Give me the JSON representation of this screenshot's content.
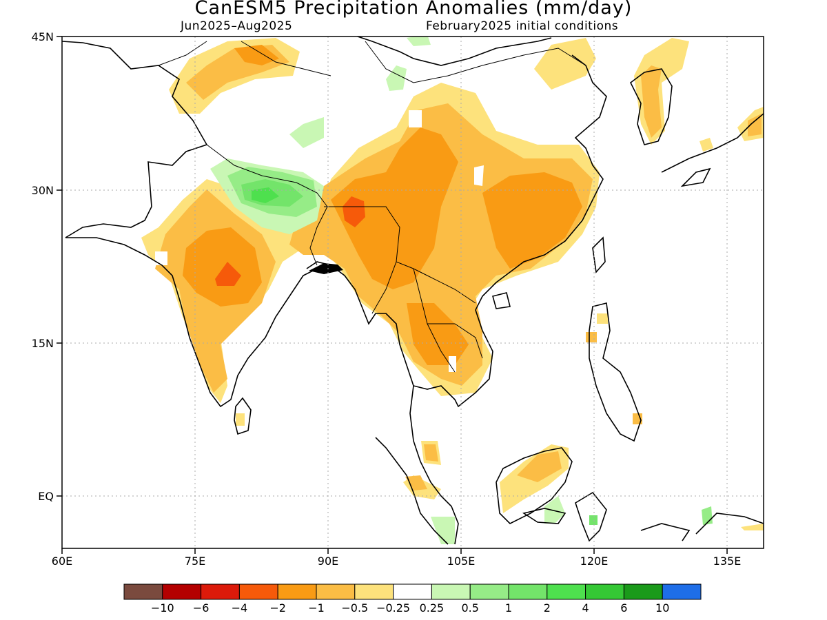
{
  "title": "CanESM5 Precipitation Anomalies (mm/day)",
  "subtitle_left": "Jun2025–Aug2025",
  "subtitle_right": "February2025 initial conditions",
  "axes": {
    "lon_ticks": [
      "60E",
      "75E",
      "90E",
      "105E",
      "120E",
      "135E"
    ],
    "lat_ticks": [
      "45N",
      "30N",
      "15N",
      "EQ"
    ]
  },
  "colorbar": {
    "colors": [
      "#7a4a3e",
      "#b40000",
      "#dc1a0a",
      "#f65a0a",
      "#f99b14",
      "#fbbd45",
      "#fde27c",
      "#ffffff",
      "#c9f7b4",
      "#96ec87",
      "#73e46a",
      "#4ee04e",
      "#35c835",
      "#1a9a1a",
      "#1e6ee8"
    ],
    "labels": [
      "−10",
      "−6",
      "−4",
      "−2",
      "−1",
      "−0.5",
      "−0.25",
      "0.25",
      "0.5",
      "1",
      "2",
      "4",
      "6",
      "10"
    ]
  },
  "palette": {
    "light_yellow": "#fde27c",
    "light_orange": "#fbbd45",
    "orange": "#f99b14",
    "dark_orange": "#f65a0a",
    "light_green": "#c9f7b4",
    "green": "#96ec87",
    "mid_green": "#73e46a",
    "bright_green": "#4ee04e",
    "coastline": "#000000",
    "gridline": "#aaaaaa"
  }
}
